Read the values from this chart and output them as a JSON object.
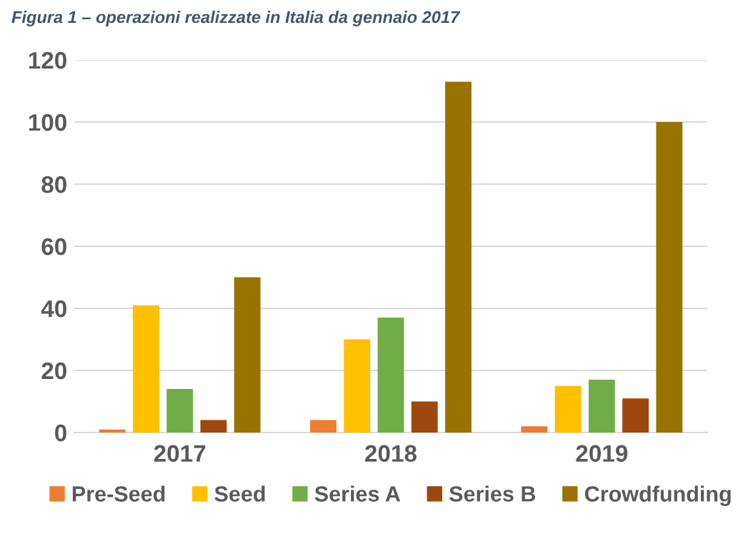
{
  "chart_data": {
    "type": "bar",
    "title": "Figura 1 – operazioni realizzate in Italia da gennaio 2017",
    "categories": [
      "2017",
      "2018",
      "2019"
    ],
    "series": [
      {
        "name": "Pre-Seed",
        "color": "#ed7d31",
        "values": [
          1,
          4,
          2
        ]
      },
      {
        "name": "Seed",
        "color": "#ffc000",
        "values": [
          41,
          30,
          15
        ]
      },
      {
        "name": "Series A",
        "color": "#70ad47",
        "values": [
          14,
          37,
          17
        ]
      },
      {
        "name": "Series B",
        "color": "#9e480e",
        "values": [
          4,
          10,
          11
        ]
      },
      {
        "name": "Crowdfunding",
        "color": "#997300",
        "values": [
          50,
          113,
          100
        ]
      }
    ],
    "ylim": [
      0,
      120
    ],
    "yticks": [
      0,
      20,
      40,
      60,
      80,
      100,
      120
    ],
    "grid": "y",
    "legend": "bottom"
  }
}
